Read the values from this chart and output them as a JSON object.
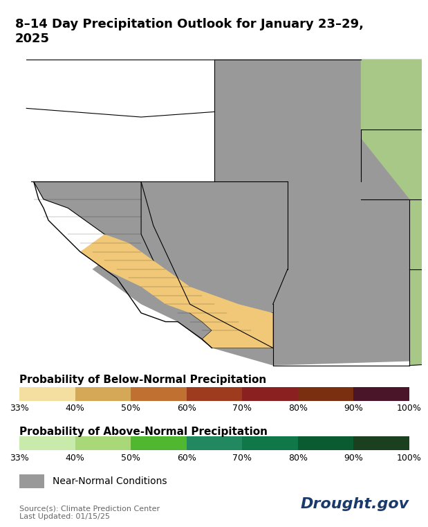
{
  "title": "8–14 Day Precipitation Outlook for January 23–29,\n2025",
  "title_fontsize": 13,
  "below_normal_colors": [
    "#f5dfa0",
    "#d4a857",
    "#c07030",
    "#9e3a1e",
    "#8b2020",
    "#7a3010",
    "#4a1528"
  ],
  "above_normal_colors": [
    "#c8eaaa",
    "#a8d878",
    "#50b830",
    "#228860",
    "#107848",
    "#0a5c30",
    "#1a4020"
  ],
  "colorbar_ticks": [
    "33%",
    "40%",
    "50%",
    "60%",
    "70%",
    "80%",
    "90%",
    "100%"
  ],
  "near_normal_color": "#999999",
  "below_label": "Probability of Below-Normal Precipitation",
  "above_label": "Probability of Above-Normal Precipitation",
  "near_normal_label": "Near-Normal Conditions",
  "source_text": "Source(s): Climate Prediction Center\nLast Updated: 01/15/25",
  "drought_gov_text": "Drought.gov",
  "drought_gov_color": "#1a3a6b",
  "map_bg": "#ffffff",
  "gray_color": "#999999",
  "tan_color": "#f0c878",
  "green_color": "#a8c888",
  "label_fontsize": 11,
  "tick_fontsize": 9
}
